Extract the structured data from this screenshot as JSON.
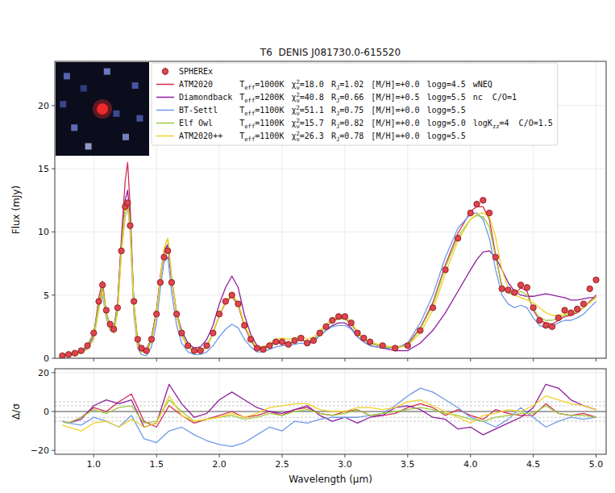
{
  "chart_data": [
    {
      "type": "line",
      "title": "T6  DENIS J081730.0-615520",
      "y_label": "Flux (mJy)",
      "xlim": [
        0.69,
        5.08
      ],
      "ylim": [
        0,
        23.5
      ],
      "xticks": [
        1,
        1.5,
        2,
        2.5,
        3,
        3.5,
        4,
        4.5,
        5
      ],
      "yticks": [
        0,
        5,
        10,
        15,
        20
      ],
      "grid": true,
      "tick_labels": "y",
      "legend": "upper left",
      "legend_fields": [
        {
          "base": "T",
          "sub": "eff",
          "after": "=",
          "suffix": "K"
        },
        {
          "base": "χ",
          "sup": "2",
          "sub": "ν",
          "after": "="
        },
        {
          "base": "R",
          "sub": "J",
          "after": "="
        },
        {
          "base": "[M/H]",
          "after": "="
        },
        {
          "base": "logg",
          "after": "="
        }
      ],
      "x": [
        0.75,
        0.8,
        0.85,
        0.9,
        0.95,
        1.0,
        1.04,
        1.07,
        1.1,
        1.13,
        1.16,
        1.19,
        1.22,
        1.25,
        1.27,
        1.29,
        1.32,
        1.35,
        1.38,
        1.42,
        1.46,
        1.5,
        1.53,
        1.56,
        1.59,
        1.62,
        1.66,
        1.7,
        1.75,
        1.8,
        1.85,
        1.9,
        1.95,
        2.0,
        2.05,
        2.1,
        2.15,
        2.2,
        2.25,
        2.3,
        2.35,
        2.4,
        2.45,
        2.5,
        2.55,
        2.6,
        2.65,
        2.7,
        2.75,
        2.8,
        2.85,
        2.9,
        2.95,
        3.0,
        3.05,
        3.1,
        3.15,
        3.2,
        3.3,
        3.4,
        3.5,
        3.6,
        3.7,
        3.8,
        3.9,
        4.0,
        4.05,
        4.1,
        4.15,
        4.2,
        4.25,
        4.3,
        4.35,
        4.4,
        4.45,
        4.5,
        4.55,
        4.6,
        4.65,
        4.7,
        4.75,
        4.8,
        4.85,
        4.9,
        4.95,
        5.0
      ],
      "series": [
        {
          "name": "SPHEREx",
          "type": "scatter",
          "marker": "circle",
          "color": "#e0454f",
          "values": [
            0.2,
            0.3,
            0.4,
            0.6,
            1.0,
            2.0,
            4.5,
            5.8,
            3.8,
            2.7,
            2.3,
            4.0,
            8.5,
            12.0,
            12.3,
            10.5,
            4.5,
            1.5,
            0.8,
            0.6,
            1.5,
            3.5,
            6.0,
            8.0,
            8.5,
            6.0,
            3.5,
            2.0,
            1.0,
            0.6,
            0.6,
            1.0,
            2.0,
            3.5,
            4.5,
            5.0,
            4.3,
            2.6,
            1.5,
            0.8,
            0.7,
            1.0,
            1.3,
            1.3,
            1.1,
            1.4,
            1.6,
            1.2,
            1.4,
            2.0,
            2.5,
            3.0,
            3.3,
            3.3,
            2.8,
            2.0,
            1.6,
            1.3,
            1.0,
            0.8,
            1.0,
            2.2,
            4.0,
            7.0,
            9.5,
            11.5,
            12.2,
            12.5,
            11.5,
            8.0,
            5.5,
            5.4,
            5.2,
            5.8,
            5.6,
            4.0,
            3.0,
            2.6,
            2.5,
            3.2,
            3.8,
            3.6,
            3.9,
            4.3,
            5.5,
            6.2
          ]
        },
        {
          "name": "ATM2020",
          "type": "line",
          "color": "#d62b4f",
          "legend_values": [
            "1000",
            "18.0",
            "1.02",
            "+0.0",
            "4.5"
          ],
          "extra": [
            {
              "base": "wNEQ"
            }
          ],
          "values": [
            0.2,
            0.3,
            0.4,
            0.5,
            0.9,
            1.8,
            4.8,
            6.1,
            3.5,
            2.4,
            2.2,
            4.2,
            9.5,
            14.0,
            15.5,
            12.0,
            4.0,
            1.2,
            0.6,
            0.5,
            1.6,
            3.8,
            6.5,
            8.5,
            9.0,
            6.2,
            3.4,
            1.8,
            0.9,
            0.5,
            0.5,
            0.9,
            2.0,
            3.4,
            4.4,
            4.9,
            4.2,
            2.5,
            1.4,
            0.7,
            0.7,
            1.0,
            1.2,
            1.2,
            1.2,
            1.3,
            1.5,
            1.3,
            1.5,
            2.0,
            2.5,
            2.9,
            3.2,
            3.2,
            2.7,
            2.0,
            1.5,
            1.2,
            0.9,
            0.8,
            1.1,
            2.4,
            4.4,
            7.4,
            9.9,
            11.6,
            12.0,
            12.0,
            11.0,
            8.2,
            5.6,
            5.2,
            5.0,
            5.6,
            5.3,
            3.8,
            3.0,
            2.8,
            2.7,
            3.0,
            3.3,
            3.4,
            3.6,
            4.0,
            4.5,
            5.0
          ]
        },
        {
          "name": "Diamondback",
          "type": "line",
          "color": "#8e1f9e",
          "legend_values": [
            "1200",
            "40.8",
            "0.66",
            "+0.5",
            "5.5"
          ],
          "extra": [
            {
              "base": "nc  C/O=1"
            }
          ],
          "values": [
            0.2,
            0.3,
            0.4,
            0.6,
            1.0,
            2.0,
            4.2,
            5.5,
            3.6,
            2.6,
            2.4,
            4.3,
            9.0,
            12.5,
            13.3,
            11.0,
            4.2,
            1.4,
            0.8,
            0.7,
            1.6,
            3.7,
            6.3,
            8.3,
            9.0,
            6.3,
            3.6,
            2.2,
            1.2,
            0.8,
            0.9,
            1.5,
            2.6,
            4.3,
            5.6,
            6.5,
            5.6,
            3.4,
            1.9,
            1.0,
            0.8,
            1.1,
            1.3,
            1.2,
            1.1,
            1.3,
            1.5,
            1.2,
            1.3,
            1.8,
            2.2,
            2.6,
            2.8,
            2.8,
            2.4,
            1.7,
            1.3,
            1.0,
            0.8,
            0.6,
            0.6,
            1.2,
            2.2,
            3.6,
            5.3,
            7.0,
            7.8,
            8.4,
            8.5,
            8.0,
            7.0,
            6.0,
            5.3,
            5.0,
            4.9,
            4.9,
            5.0,
            5.1,
            5.0,
            4.9,
            4.8,
            4.6,
            4.6,
            4.7,
            4.8,
            4.8
          ]
        },
        {
          "name": "BT-Settl",
          "type": "line",
          "color": "#6f9be8",
          "legend_values": [
            "1100",
            "51.1",
            "0.75",
            "+0.0",
            "5.5"
          ],
          "extra": [],
          "values": [
            0.1,
            0.2,
            0.3,
            0.4,
            0.8,
            1.6,
            4.0,
            5.0,
            3.2,
            2.2,
            2.0,
            3.8,
            8.4,
            11.2,
            12.0,
            10.0,
            3.4,
            0.8,
            0.3,
            0.2,
            0.9,
            2.8,
            5.5,
            7.6,
            8.0,
            5.2,
            2.6,
            1.2,
            0.5,
            0.3,
            0.3,
            0.5,
            1.0,
            1.7,
            2.3,
            2.7,
            2.4,
            1.5,
            0.9,
            0.5,
            0.5,
            0.7,
            0.9,
            1.0,
            1.0,
            1.1,
            1.2,
            1.1,
            1.3,
            1.8,
            2.2,
            2.5,
            2.6,
            2.6,
            2.3,
            1.7,
            1.3,
            1.0,
            0.8,
            0.8,
            1.2,
            2.8,
            5.0,
            8.0,
            10.3,
            11.4,
            11.5,
            11.0,
            9.5,
            7.0,
            5.0,
            4.3,
            4.0,
            4.2,
            4.0,
            3.2,
            2.6,
            2.4,
            2.5,
            2.8,
            3.0,
            3.0,
            3.2,
            3.5,
            4.0,
            4.5
          ]
        },
        {
          "name": "Elf Owl",
          "type": "line",
          "color": "#9ccc3c",
          "legend_values": [
            "1100",
            "15.7",
            "0.82",
            "+0.0",
            "5.0"
          ],
          "extra": [
            {
              "base": "logK",
              "sub": "zz",
              "after": "=4  C/O=1.5"
            }
          ],
          "values": [
            0.2,
            0.3,
            0.4,
            0.6,
            1.0,
            1.9,
            4.4,
            5.7,
            3.7,
            2.6,
            2.3,
            4.1,
            8.8,
            12.0,
            12.5,
            10.6,
            4.3,
            1.4,
            0.7,
            0.6,
            1.5,
            3.6,
            6.3,
            8.6,
            9.5,
            6.5,
            3.6,
            2.0,
            1.0,
            0.6,
            0.6,
            1.0,
            2.0,
            3.4,
            4.5,
            5.0,
            4.3,
            2.6,
            1.5,
            0.8,
            0.7,
            1.0,
            1.2,
            1.3,
            1.2,
            1.3,
            1.5,
            1.3,
            1.5,
            2.0,
            2.5,
            2.9,
            3.1,
            3.1,
            2.7,
            2.0,
            1.5,
            1.2,
            0.9,
            0.8,
            1.0,
            2.3,
            4.2,
            7.2,
            9.6,
            11.0,
            11.3,
            11.2,
            10.4,
            8.0,
            5.8,
            5.2,
            5.0,
            5.3,
            5.0,
            3.9,
            3.2,
            3.0,
            3.0,
            3.2,
            3.4,
            3.5,
            3.7,
            4.0,
            4.4,
            4.9
          ]
        },
        {
          "name": "ATM2020++",
          "type": "line",
          "color": "#f0d12a",
          "legend_values": [
            "1100",
            "26.3",
            "0.78",
            "+0.0",
            "5.5"
          ],
          "extra": [],
          "values": [
            0.1,
            0.2,
            0.3,
            0.4,
            0.7,
            1.5,
            3.8,
            5.3,
            3.4,
            2.3,
            2.0,
            3.6,
            8.2,
            11.4,
            12.0,
            10.2,
            3.8,
            1.0,
            0.5,
            0.4,
            1.3,
            3.4,
            6.2,
            8.7,
            9.5,
            6.4,
            3.4,
            1.8,
            0.9,
            0.5,
            0.5,
            0.9,
            1.9,
            3.4,
            4.5,
            5.1,
            4.4,
            2.7,
            1.6,
            0.9,
            0.9,
            1.2,
            1.5,
            1.6,
            1.5,
            1.6,
            1.8,
            1.5,
            1.7,
            2.2,
            2.7,
            3.1,
            3.4,
            3.4,
            2.9,
            2.1,
            1.6,
            1.3,
            1.0,
            0.9,
            1.0,
            2.0,
            3.8,
            6.7,
            9.3,
            11.0,
            11.4,
            11.5,
            11.2,
            9.6,
            7.0,
            5.6,
            5.0,
            4.8,
            4.6,
            4.4,
            4.0,
            3.6,
            3.4,
            3.4,
            3.5,
            3.6,
            3.8,
            4.0,
            4.4,
            4.8
          ]
        }
      ]
    },
    {
      "type": "line",
      "x_label": "Wavelength (μm)",
      "y_label": "Δ/σ",
      "xlim": [
        0.69,
        5.08
      ],
      "ylim": [
        -22,
        22
      ],
      "xticks": [
        {
          "value": 1,
          "label": "1.0"
        },
        1.5,
        {
          "value": 2,
          "label": "2.0"
        },
        2.5,
        {
          "value": 3,
          "label": "3.0"
        },
        3.5,
        {
          "value": 4,
          "label": "4.0"
        },
        4.5,
        {
          "value": 5,
          "label": "5.0"
        }
      ],
      "yticks": [
        {
          "value": -20,
          "label": "−20"
        },
        0,
        20
      ],
      "grid": true,
      "hlines": [
        -5,
        -3,
        0,
        3,
        5
      ],
      "x": [
        0.75,
        0.8,
        0.9,
        1.0,
        1.1,
        1.2,
        1.3,
        1.4,
        1.5,
        1.6,
        1.7,
        1.8,
        1.9,
        2.0,
        2.1,
        2.2,
        2.3,
        2.4,
        2.5,
        2.6,
        2.7,
        2.8,
        2.9,
        3.0,
        3.1,
        3.2,
        3.3,
        3.4,
        3.5,
        3.6,
        3.7,
        3.8,
        3.9,
        4.0,
        4.1,
        4.2,
        4.3,
        4.4,
        4.5,
        4.6,
        4.7,
        4.8,
        4.9,
        5.0
      ],
      "series": [
        {
          "color": "#d62b4f",
          "values": [
            -5,
            -6,
            -3,
            2,
            0,
            5,
            9,
            -5,
            -8,
            3,
            -2,
            -6,
            -4,
            -2,
            0,
            -3,
            -2,
            0,
            -2,
            1,
            2,
            -1,
            -2,
            0,
            1,
            -2,
            -2,
            -1,
            2,
            4,
            2,
            -2,
            1,
            -2,
            -4,
            1,
            -1,
            -2,
            -2,
            4,
            -1,
            -2,
            -1,
            -3
          ]
        },
        {
          "color": "#8e1f9e",
          "values": [
            -5,
            -6,
            -4,
            3,
            6,
            4,
            6,
            -8,
            -6,
            14,
            4,
            -3,
            -1,
            6,
            10,
            6,
            2,
            0,
            -1,
            1,
            3,
            -2,
            -5,
            -3,
            -6,
            -3,
            -2,
            2,
            3,
            1,
            -3,
            -4,
            -9,
            -8,
            -12,
            -9,
            -6,
            -3,
            2,
            14,
            12,
            6,
            3,
            1
          ]
        },
        {
          "color": "#6f9be8",
          "values": [
            -5,
            -6,
            -7,
            -3,
            -5,
            -8,
            -2,
            -14,
            -16,
            -10,
            -8,
            -12,
            -15,
            -17,
            -18,
            -16,
            -12,
            -8,
            -10,
            -5,
            -6,
            -4,
            -3,
            -3,
            -3,
            -2,
            -1,
            3,
            8,
            12,
            10,
            6,
            2,
            -3,
            -5,
            -8,
            -4,
            2,
            -3,
            -8,
            -5,
            -3,
            -4,
            -3
          ]
        },
        {
          "color": "#9ccc3c",
          "values": [
            -5,
            -6,
            -3,
            1,
            -1,
            2,
            3,
            -6,
            -5,
            6,
            0,
            -5,
            -4,
            -3,
            -2,
            -4,
            -3,
            -1,
            -2,
            0,
            1,
            -1,
            -2,
            -1,
            1,
            -2,
            -1,
            0,
            1,
            2,
            1,
            -1,
            -2,
            -4,
            -5,
            -3,
            -2,
            -1,
            -1,
            3,
            -1,
            -2,
            -2,
            -3
          ]
        },
        {
          "color": "#f0d12a",
          "values": [
            -7,
            -8,
            -10,
            -6,
            -5,
            -8,
            -4,
            -8,
            -6,
            8,
            -2,
            -5,
            -4,
            -3,
            -1,
            -3,
            -1,
            2,
            3,
            4,
            4,
            1,
            0,
            0,
            2,
            2,
            1,
            2,
            5,
            6,
            3,
            0,
            -3,
            -6,
            -2,
            -1,
            1,
            0,
            3,
            8,
            6,
            4,
            3,
            1
          ]
        }
      ]
    }
  ]
}
